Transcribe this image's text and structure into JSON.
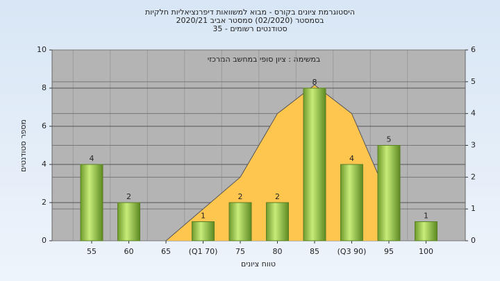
{
  "chart_data": {
    "type": "bar",
    "title": "היסטוגרמת ציונים בקורס - מבוא למשוואות דיפרנציאליות חלקיות",
    "subtitle": "בסמסטר  (02/2020)  סמסטר אביב 2020/21",
    "subtitle2": "סטודנטים רשומים - 35",
    "annotation": "במשימה : ציון סופי במחשב המרכזי",
    "x_label": "טווח ציונים",
    "y_label": "מספר סטודנטים",
    "categories": [
      "55",
      "60",
      "65",
      "(Q1 70)",
      "75",
      "80",
      "85",
      "(Q3 90)",
      "95",
      "100"
    ],
    "values": [
      4,
      2,
      0,
      1,
      2,
      2,
      8,
      4,
      5,
      1
    ],
    "value_labels": [
      "4",
      "2",
      null,
      "1",
      "2",
      "2",
      "8",
      "4",
      "5",
      "1"
    ],
    "color": "#8cbf3f",
    "curve": {
      "axis": "y2",
      "color": "#ffc64f",
      "values": [
        null,
        null,
        0,
        1,
        2,
        4,
        4.9,
        4,
        1.3,
        null
      ]
    },
    "ylim": [
      0,
      10
    ],
    "yticks": [
      0,
      2,
      4,
      6,
      8,
      10
    ],
    "y2lim": [
      0,
      6
    ],
    "y2ticks": [
      0,
      1,
      2,
      3,
      4,
      5,
      6
    ],
    "grid": true
  }
}
